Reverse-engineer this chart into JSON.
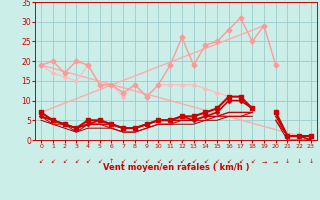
{
  "background_color": "#cceee8",
  "grid_color": "#99cccc",
  "xlabel": "Vent moyen/en rafales ( km/h )",
  "xlabel_color": "#cc0000",
  "xlim": [
    -0.5,
    23.5
  ],
  "ylim": [
    0,
    35
  ],
  "yticks": [
    0,
    5,
    10,
    15,
    20,
    25,
    30,
    35
  ],
  "xticks": [
    0,
    1,
    2,
    3,
    4,
    5,
    6,
    7,
    8,
    9,
    10,
    11,
    12,
    13,
    14,
    15,
    16,
    17,
    18,
    19,
    20,
    21,
    22,
    23
  ],
  "series": [
    {
      "comment": "pink diagonal line going up-right (straight)",
      "x": [
        0,
        19
      ],
      "y": [
        7,
        29
      ],
      "color": "#ffaaaa",
      "marker": null,
      "linewidth": 1.0,
      "markersize": 0,
      "zorder": 2
    },
    {
      "comment": "pink diagonal line going down-right (straight)",
      "x": [
        0,
        22
      ],
      "y": [
        19,
        1
      ],
      "color": "#ffaaaa",
      "marker": null,
      "linewidth": 1.0,
      "markersize": 0,
      "zorder": 2
    },
    {
      "comment": "pink zigzag line with diamond markers - upper",
      "x": [
        0,
        1,
        2,
        3,
        4,
        5,
        6,
        7,
        8,
        9,
        10,
        11,
        12,
        13,
        14,
        15,
        16,
        17,
        18,
        19,
        20,
        21,
        22
      ],
      "y": [
        19,
        20,
        17,
        20,
        19,
        14,
        14,
        12,
        14,
        11,
        14,
        19,
        26,
        19,
        24,
        25,
        28,
        31,
        25,
        29,
        19,
        null,
        null
      ],
      "color": "#ff9999",
      "marker": "D",
      "linewidth": 1.0,
      "markersize": 2.5,
      "zorder": 3
    },
    {
      "comment": "pink line going down with marker - lower zigzag segment",
      "x": [
        0,
        1,
        2,
        3,
        4,
        5,
        6,
        7,
        8,
        9,
        10,
        11,
        12,
        13,
        14,
        15,
        16,
        17,
        18,
        19,
        20,
        21,
        22
      ],
      "y": [
        19,
        17,
        16,
        15,
        19,
        14,
        14,
        11,
        14,
        11,
        14,
        14,
        14,
        14,
        13,
        12,
        11,
        null,
        null,
        null,
        null,
        null,
        null
      ],
      "color": "#ffbbbb",
      "marker": "D",
      "linewidth": 0.8,
      "markersize": 2.0,
      "zorder": 2
    },
    {
      "comment": "dark red line with square markers - top cluster",
      "x": [
        0,
        1,
        2,
        3,
        4,
        5,
        6,
        7,
        8,
        9,
        10,
        11,
        12,
        13,
        14,
        15,
        16,
        17,
        18,
        19,
        20,
        21,
        22,
        23
      ],
      "y": [
        7,
        5,
        4,
        3,
        5,
        5,
        4,
        3,
        3,
        4,
        5,
        5,
        6,
        6,
        7,
        8,
        11,
        11,
        8,
        null,
        7,
        1,
        1,
        1
      ],
      "color": "#cc0000",
      "marker": "s",
      "linewidth": 1.5,
      "markersize": 2.5,
      "zorder": 5
    },
    {
      "comment": "dark red line with diamond markers",
      "x": [
        0,
        1,
        2,
        3,
        4,
        5,
        6,
        7,
        8,
        9,
        10,
        11,
        12,
        13,
        14,
        15,
        16,
        17,
        18,
        19,
        20,
        21,
        22,
        23
      ],
      "y": [
        6,
        5,
        4,
        3,
        4,
        5,
        4,
        3,
        3,
        4,
        5,
        5,
        6,
        5,
        6,
        7,
        10,
        10,
        8,
        null,
        7,
        1,
        1,
        1
      ],
      "color": "#cc0000",
      "marker": "D",
      "linewidth": 1.2,
      "markersize": 2.0,
      "zorder": 4
    },
    {
      "comment": "dark red plain line 1",
      "x": [
        0,
        1,
        2,
        3,
        4,
        5,
        6,
        7,
        8,
        9,
        10,
        11,
        12,
        13,
        14,
        15,
        16,
        17,
        18,
        19,
        20,
        21,
        22,
        23
      ],
      "y": [
        6,
        5,
        4,
        3,
        4,
        4,
        4,
        3,
        3,
        4,
        5,
        5,
        5,
        5,
        6,
        6,
        7,
        7,
        7,
        null,
        6,
        1,
        1,
        0
      ],
      "color": "#cc0000",
      "marker": null,
      "linewidth": 1.0,
      "markersize": 0,
      "zorder": 3
    },
    {
      "comment": "dark red plain line 2 - slightly lower",
      "x": [
        0,
        1,
        2,
        3,
        4,
        5,
        6,
        7,
        8,
        9,
        10,
        11,
        12,
        13,
        14,
        15,
        16,
        17,
        18,
        19,
        20,
        21,
        22,
        23
      ],
      "y": [
        6,
        4,
        4,
        2,
        4,
        4,
        3,
        2,
        2,
        3,
        4,
        4,
        5,
        5,
        5,
        6,
        6,
        6,
        7,
        null,
        5,
        1,
        1,
        0
      ],
      "color": "#cc0000",
      "marker": null,
      "linewidth": 0.8,
      "markersize": 0,
      "zorder": 3
    },
    {
      "comment": "dark red plain line 3 - bottom",
      "x": [
        0,
        1,
        2,
        3,
        4,
        5,
        6,
        7,
        8,
        9,
        10,
        11,
        12,
        13,
        14,
        15,
        16,
        17,
        18,
        19,
        20,
        21,
        22,
        23
      ],
      "y": [
        5,
        4,
        3,
        2,
        3,
        3,
        3,
        2,
        2,
        3,
        4,
        4,
        4,
        4,
        5,
        5,
        6,
        6,
        6,
        null,
        5,
        0,
        0,
        0
      ],
      "color": "#880000",
      "marker": null,
      "linewidth": 0.7,
      "markersize": 0,
      "zorder": 2
    }
  ],
  "wind_arrows": {
    "x": [
      0,
      1,
      2,
      3,
      4,
      5,
      6,
      7,
      8,
      9,
      10,
      11,
      12,
      13,
      14,
      15,
      16,
      17,
      18,
      19,
      20,
      21,
      22,
      23
    ],
    "chars": [
      "↙",
      "↙",
      "↙",
      "↙",
      "↙",
      "↙",
      "↑",
      "↙",
      "↙",
      "↙",
      "↙",
      "↙",
      "↙",
      "↙",
      "↙",
      "↙",
      "↙",
      "↙",
      "↙",
      "→",
      "→",
      "↓",
      "↓",
      "↓"
    ]
  }
}
